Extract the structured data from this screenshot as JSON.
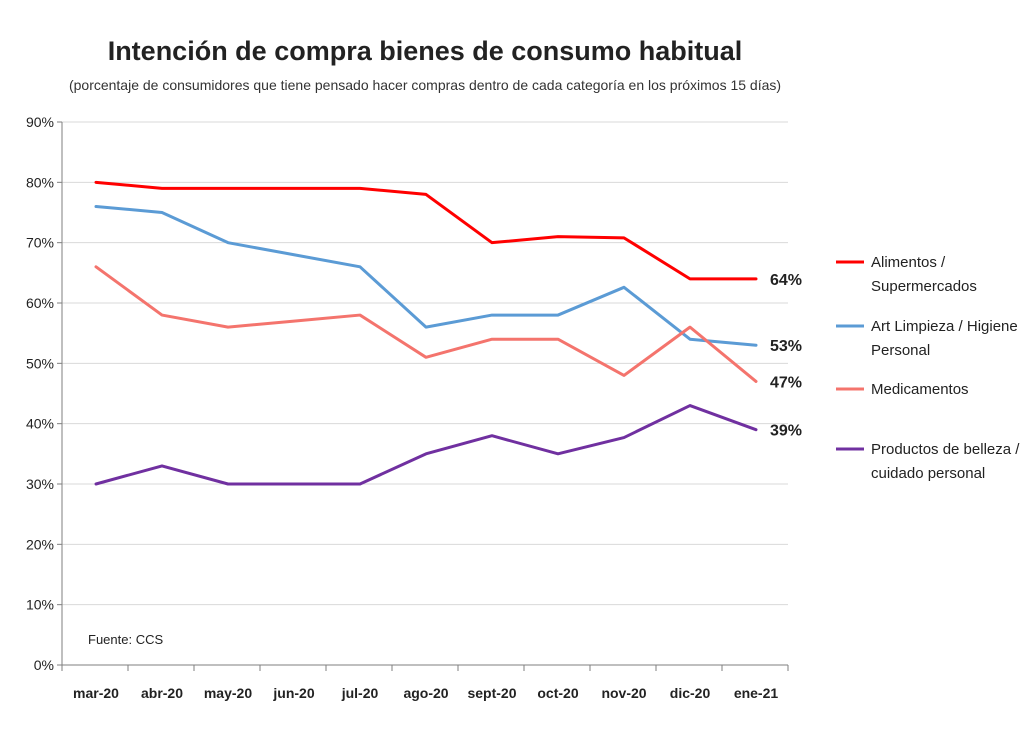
{
  "chart_data": {
    "type": "line",
    "title": "Intención de compra bienes de consumo habitual",
    "subtitle": "(porcentaje de consumidores que tiene pensado hacer compras dentro de cada categoría en los próximos 15 días)",
    "source": "Fuente: CCS",
    "categories": [
      "mar-20",
      "abr-20",
      "may-20",
      "jun-20",
      "jul-20",
      "ago-20",
      "sept-20",
      "oct-20",
      "nov-20",
      "dic-20",
      "ene-21"
    ],
    "ylim": [
      0,
      90
    ],
    "yticks": [
      0,
      10,
      20,
      30,
      40,
      50,
      60,
      70,
      80,
      90
    ],
    "ytick_labels": [
      "0%",
      "10%",
      "20%",
      "30%",
      "40%",
      "50%",
      "60%",
      "70%",
      "80%",
      "90%"
    ],
    "grid": true,
    "legend_position": "right",
    "series": [
      {
        "name_lines": [
          "Alimentos /",
          "Supermercados"
        ],
        "color": "#ff0000",
        "values": [
          80,
          79,
          79,
          79,
          79,
          78,
          70,
          71,
          70.8,
          64,
          64
        ],
        "end_label": "64%"
      },
      {
        "name_lines": [
          "Art Limpieza / Higiene",
          "Personal"
        ],
        "color": "#5b9bd5",
        "values": [
          76,
          75,
          70,
          68,
          66,
          56,
          58,
          58,
          62.6,
          54,
          53
        ],
        "end_label": "53%"
      },
      {
        "name_lines": [
          "Medicamentos"
        ],
        "color": "#f4746d",
        "values": [
          66,
          58,
          56,
          57,
          58,
          51,
          54,
          54,
          48,
          56,
          47
        ],
        "end_label": "47%"
      },
      {
        "name_lines": [
          "Productos de belleza /",
          "cuidado personal"
        ],
        "color": "#7030a0",
        "values": [
          30,
          33,
          30,
          30,
          30,
          35,
          38,
          35,
          37.7,
          43,
          39
        ],
        "end_label": "39%"
      }
    ]
  }
}
